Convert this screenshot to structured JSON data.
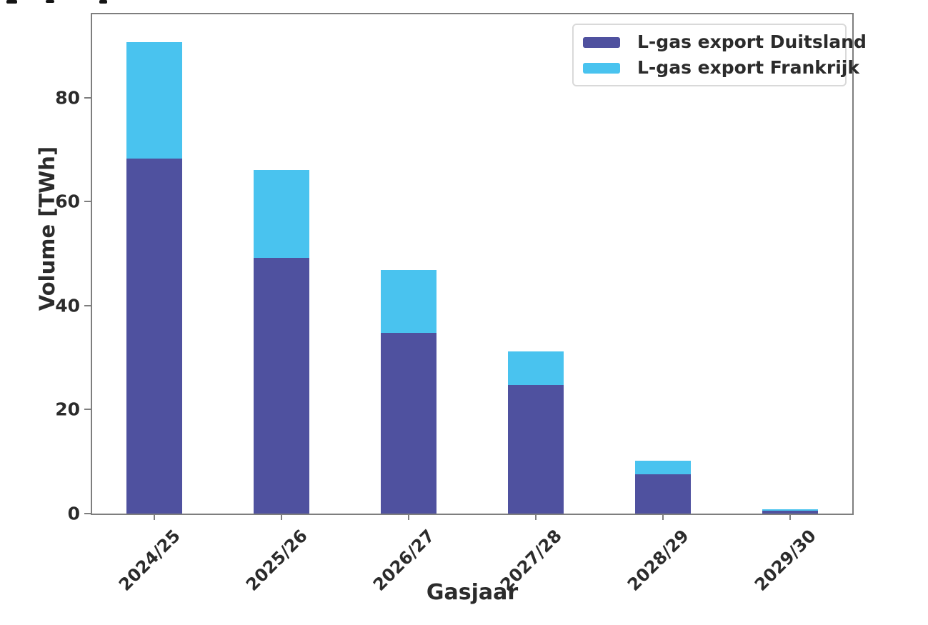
{
  "page": {
    "background": "#ffffff"
  },
  "chart_data": {
    "type": "bar",
    "stacked": true,
    "title": "",
    "xlabel": "Gasjaar",
    "ylabel": "Volume [TWh]",
    "categories": [
      "2024/25",
      "2025/26",
      "2026/27",
      "2027/28",
      "2028/29",
      "2029/30"
    ],
    "series": [
      {
        "name": "L-gas export Duitsland",
        "color": "#4f519f",
        "values": [
          68.3,
          49.2,
          34.7,
          24.7,
          7.6,
          0.5
        ]
      },
      {
        "name": "L-gas export Frankrijk",
        "color": "#49c3ef",
        "values": [
          22.3,
          16.8,
          12.1,
          6.5,
          2.5,
          0.3
        ]
      }
    ],
    "totals": [
      90.6,
      66.0,
      46.8,
      31.2,
      10.1,
      0.8
    ],
    "ylim": [
      0,
      96
    ],
    "yticks": [
      0,
      20,
      40,
      60,
      80
    ],
    "legend_position": "upper right",
    "grid": false,
    "axis_color": "#7e7e7e",
    "text_color": "#2b2b2b"
  }
}
